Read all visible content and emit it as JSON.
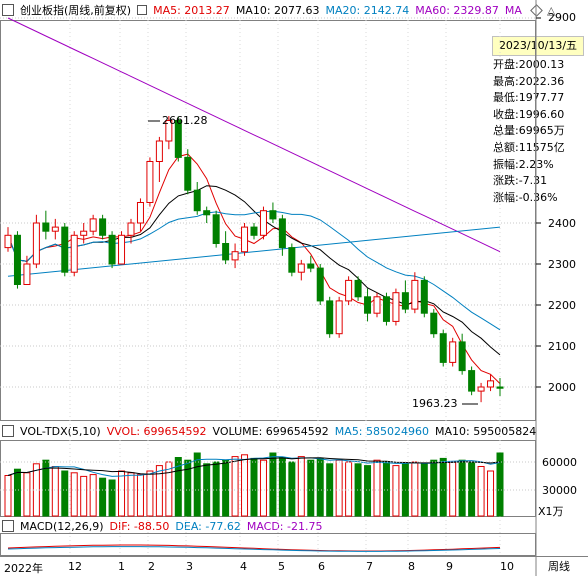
{
  "header": {
    "title": "创业板指(周线,前复权)",
    "ma_items": [
      {
        "label": "MA5: 2013.27",
        "color": "#e00000"
      },
      {
        "label": "MA10: 2077.63",
        "color": "#000000"
      },
      {
        "label": "MA20: 2142.74",
        "color": "#0080c0"
      },
      {
        "label": "MA60: 2329.87",
        "color": "#a000c0"
      },
      {
        "label": "MA",
        "color": "#a000c0"
      }
    ]
  },
  "info_panel": {
    "date": "2023/10/13/五",
    "rows": [
      "开盘:2000.13",
      "最高:2022.36",
      "最低:1977.77",
      "收盘:1996.60",
      "总量:69965万",
      "总额:11575亿",
      "振幅:2.23%",
      "涨跌:-7.31",
      "涨幅:-0.36%"
    ]
  },
  "volume_header": {
    "title": "VOL-TDX(5,10)",
    "items": [
      {
        "label": "VVOL: 699654592",
        "color": "#e00000"
      },
      {
        "label": "VOLUME: 699654592",
        "color": "#000000"
      },
      {
        "label": "MA5: 585024960",
        "color": "#0080c0"
      },
      {
        "label": "MA10: 595005824",
        "color": "#000000"
      }
    ]
  },
  "macd_header": {
    "title": "MACD(12,26,9)",
    "items": [
      {
        "label": "DIF: -88.50",
        "color": "#e00000"
      },
      {
        "label": "DEA: -77.62",
        "color": "#0080c0"
      },
      {
        "label": "MACD: -21.75",
        "color": "#a000c0"
      }
    ]
  },
  "bottom_right_label": "周线",
  "volume_unit": "X1万",
  "chart_data": [
    {
      "type": "candlestick",
      "yticks": [
        2000,
        2100,
        2200,
        2300,
        2400,
        2900
      ],
      "ylim": [
        1940,
        2920
      ],
      "annotations": [
        "2661.28",
        "1963.23"
      ],
      "xlabels": [
        "2022年",
        "12",
        "1",
        "2",
        "3",
        "4",
        "5",
        "6",
        "7",
        "8",
        "9",
        "10"
      ],
      "candles": [
        [
          2340,
          2390,
          2330,
          2370
        ],
        [
          2370,
          2380,
          2240,
          2250
        ],
        [
          2250,
          2320,
          2250,
          2300
        ],
        [
          2300,
          2420,
          2290,
          2400
        ],
        [
          2400,
          2430,
          2360,
          2380
        ],
        [
          2380,
          2410,
          2360,
          2390
        ],
        [
          2390,
          2400,
          2270,
          2280
        ],
        [
          2280,
          2380,
          2270,
          2370
        ],
        [
          2370,
          2400,
          2350,
          2380
        ],
        [
          2380,
          2420,
          2370,
          2410
        ],
        [
          2410,
          2420,
          2360,
          2370
        ],
        [
          2370,
          2380,
          2290,
          2300
        ],
        [
          2300,
          2380,
          2300,
          2370
        ],
        [
          2370,
          2410,
          2350,
          2400
        ],
        [
          2400,
          2460,
          2380,
          2450
        ],
        [
          2450,
          2560,
          2440,
          2550
        ],
        [
          2550,
          2610,
          2500,
          2600
        ],
        [
          2600,
          2661,
          2580,
          2650
        ],
        [
          2650,
          2660,
          2550,
          2560
        ],
        [
          2560,
          2580,
          2470,
          2480
        ],
        [
          2480,
          2500,
          2420,
          2430
        ],
        [
          2430,
          2440,
          2400,
          2420
        ],
        [
          2420,
          2430,
          2340,
          2350
        ],
        [
          2350,
          2380,
          2300,
          2310
        ],
        [
          2310,
          2350,
          2290,
          2330
        ],
        [
          2330,
          2400,
          2320,
          2390
        ],
        [
          2390,
          2400,
          2360,
          2370
        ],
        [
          2370,
          2440,
          2360,
          2430
        ],
        [
          2430,
          2450,
          2400,
          2410
        ],
        [
          2410,
          2420,
          2320,
          2340
        ],
        [
          2340,
          2350,
          2270,
          2280
        ],
        [
          2280,
          2310,
          2260,
          2300
        ],
        [
          2300,
          2320,
          2280,
          2290
        ],
        [
          2290,
          2300,
          2200,
          2210
        ],
        [
          2210,
          2220,
          2120,
          2130
        ],
        [
          2130,
          2220,
          2120,
          2210
        ],
        [
          2210,
          2270,
          2200,
          2260
        ],
        [
          2260,
          2270,
          2210,
          2220
        ],
        [
          2220,
          2240,
          2160,
          2180
        ],
        [
          2180,
          2230,
          2170,
          2220
        ],
        [
          2220,
          2230,
          2150,
          2160
        ],
        [
          2160,
          2240,
          2150,
          2230
        ],
        [
          2230,
          2260,
          2180,
          2190
        ],
        [
          2190,
          2280,
          2180,
          2260
        ],
        [
          2260,
          2270,
          2170,
          2180
        ],
        [
          2180,
          2190,
          2120,
          2130
        ],
        [
          2130,
          2140,
          2050,
          2060
        ],
        [
          2060,
          2120,
          2050,
          2110
        ],
        [
          2110,
          2130,
          2030,
          2040
        ],
        [
          2040,
          2050,
          1980,
          1990
        ],
        [
          1990,
          2010,
          1963,
          2000
        ],
        [
          2000,
          2030,
          1990,
          2015
        ],
        [
          2000,
          2022,
          1978,
          1997
        ]
      ],
      "ma_series": [
        {
          "name": "MA5",
          "color": "#e00000"
        },
        {
          "name": "MA10",
          "color": "#000000"
        },
        {
          "name": "MA20",
          "color": "#0080c0"
        },
        {
          "name": "MA60",
          "color": "#a000c0"
        }
      ]
    },
    {
      "type": "bar",
      "yticks": [
        "60000",
        "30000"
      ],
      "values": [
        45,
        52,
        48,
        58,
        62,
        55,
        50,
        48,
        44,
        46,
        42,
        40,
        50,
        48,
        46,
        50,
        56,
        60,
        65,
        62,
        70,
        58,
        60,
        62,
        66,
        68,
        64,
        62,
        70,
        65,
        60,
        66,
        62,
        64,
        58,
        62,
        60,
        58,
        56,
        62,
        60,
        56,
        58,
        60,
        58,
        62,
        64,
        60,
        62,
        60,
        55,
        50,
        70
      ],
      "ups": [
        1,
        0,
        1,
        1,
        0,
        1,
        0,
        1,
        1,
        1,
        0,
        0,
        1,
        1,
        1,
        1,
        1,
        1,
        0,
        0,
        0,
        0,
        0,
        0,
        1,
        1,
        0,
        1,
        0,
        0,
        0,
        1,
        0,
        0,
        0,
        1,
        1,
        0,
        0,
        1,
        0,
        1,
        0,
        1,
        0,
        0,
        0,
        1,
        0,
        0,
        1,
        1,
        0
      ]
    },
    {
      "type": "line",
      "series": [
        {
          "name": "DIF"
        },
        {
          "name": "DEA"
        }
      ]
    }
  ]
}
